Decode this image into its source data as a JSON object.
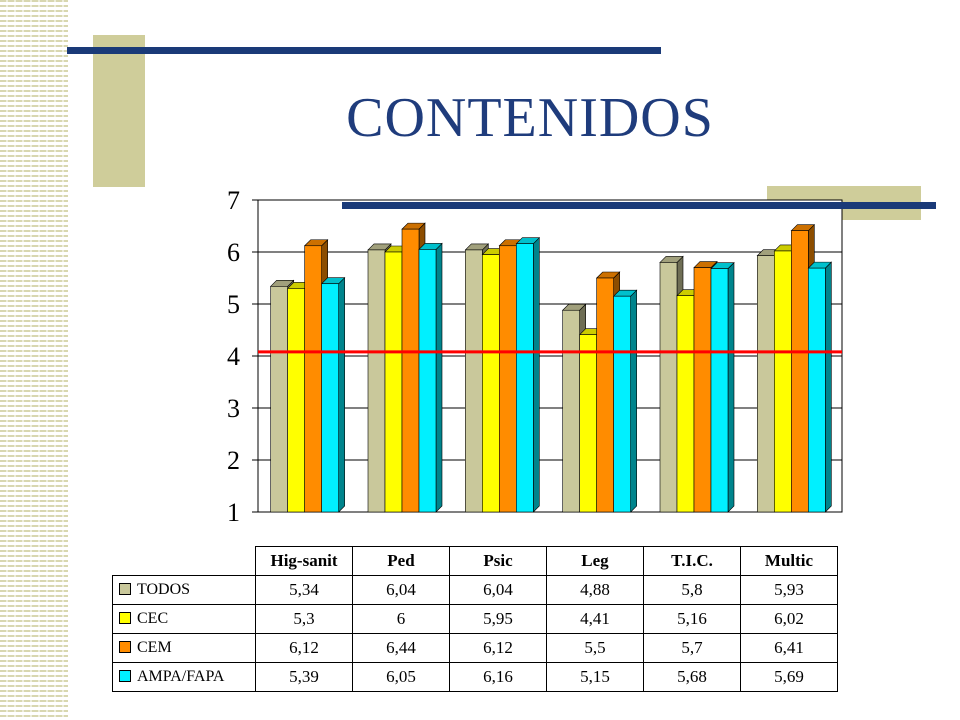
{
  "slide": {
    "title": "CONTENIDOS"
  },
  "chart_data": {
    "type": "bar",
    "categories": [
      "Hig-sanit",
      "Ped",
      "Psic",
      "Leg",
      "T.I.C.",
      "Multic"
    ],
    "series": [
      {
        "name": "TODOS",
        "values": [
          5.34,
          6.04,
          6.04,
          4.88,
          5.8,
          5.93
        ],
        "color": "#c9c89b",
        "display": [
          "5,34",
          "6,04",
          "6,04",
          "4,88",
          "5,8",
          "5,93"
        ]
      },
      {
        "name": "CEC",
        "values": [
          5.3,
          6,
          5.95,
          4.41,
          5.16,
          6.02
        ],
        "color": "#ffff00",
        "display": [
          "5,3",
          "6",
          "5,95",
          "4,41",
          "5,16",
          "6,02"
        ]
      },
      {
        "name": "CEM",
        "values": [
          6.12,
          6.44,
          6.12,
          5.5,
          5.7,
          6.41
        ],
        "color": "#ff8c00",
        "display": [
          "6,12",
          "6,44",
          "6,12",
          "5,5",
          "5,7",
          "6,41"
        ]
      },
      {
        "name": "AMPA/FAPA",
        "values": [
          5.39,
          6.05,
          6.16,
          5.15,
          5.68,
          5.69
        ],
        "color": "#00f0ff",
        "display": [
          "5,39",
          "6,05",
          "6,16",
          "5,15",
          "5,68",
          "5,69"
        ]
      }
    ],
    "ylim": [
      1,
      7
    ],
    "yticks": [
      "1",
      "2",
      "3",
      "4",
      "5",
      "6",
      "7"
    ],
    "reference_line": {
      "value": 4.08,
      "color": "#ff0000"
    },
    "grid": true,
    "legend": "data-table-below"
  }
}
